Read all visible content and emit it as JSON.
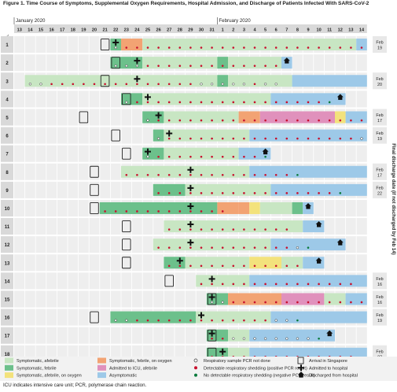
{
  "figure": {
    "title": "Figure 1. Time Course of Symptoms, Supplemental Oxygen Requirements, Hospital Admission, and Discharge of Patients Infected With SARS-CoV-2",
    "caption": "ICU indicates intensive care unit; PCR, polymerase chain reaction.",
    "right_axis_label": "Final discharge date (if not discharged by Feb 14)"
  },
  "chart_data": {
    "type": "table",
    "row_header": "Case no.",
    "months": [
      {
        "label": "January 2020",
        "start_index": 0
      },
      {
        "label": "February 2020",
        "start_index": 19
      }
    ],
    "days": [
      "13",
      "14",
      "15",
      "16",
      "17",
      "18",
      "19",
      "20",
      "21",
      "22",
      "23",
      "24",
      "25",
      "26",
      "27",
      "28",
      "29",
      "30",
      "31",
      "1",
      "2",
      "3",
      "4",
      "5",
      "6",
      "7",
      "8",
      "9",
      "10",
      "11",
      "12",
      "13",
      "14"
    ],
    "status_colors": {
      "asym": "#9dc9e8",
      "afeb": "#c8e6c3",
      "feb": "#6cc08b",
      "afeb_o2": "#f3e27c",
      "feb_o2": "#f2a373",
      "icu": "#e091bc"
    },
    "legend": [
      {
        "key": "afeb",
        "kind": "swatch",
        "label": "Symptomatic, afebrile"
      },
      {
        "key": "feb",
        "kind": "swatch",
        "label": "Symptomatic, febrile"
      },
      {
        "key": "afeb_o2",
        "kind": "swatch",
        "label": "Symptomatic, afebrile, on oxygen"
      },
      {
        "key": "feb_o2",
        "kind": "swatch",
        "label": "Symptomatic, febrile, on oxygen"
      },
      {
        "key": "icu",
        "kind": "swatch",
        "label": "Admitted to ICU, afebrile"
      },
      {
        "key": "asym",
        "kind": "swatch",
        "label": "Asymptomatic"
      },
      {
        "key": "nd",
        "kind": "open-dot",
        "label": "Respiratory sample PCR not done"
      },
      {
        "key": "pos",
        "kind": "red-dot",
        "label": "Detectable respiratory shedding (positive PCR result)"
      },
      {
        "key": "neg",
        "kind": "green-dot",
        "label": "No detectable respiratory shedding (negative PCR result)"
      },
      {
        "key": "arr",
        "kind": "box",
        "label": "Arrival in Singapore"
      },
      {
        "key": "adm",
        "kind": "cross",
        "label": "Admitted to hospital"
      },
      {
        "key": "dis",
        "kind": "house",
        "label": "Discharged from hospital"
      }
    ],
    "cases": [
      {
        "id": "1",
        "arrival": 8,
        "admit": 9,
        "discharge": null,
        "final": "Feb 19",
        "segments": [
          [
            "feb",
            9,
            10
          ],
          [
            "feb_o2",
            10,
            12
          ],
          [
            "afeb",
            12,
            32
          ],
          [
            "asym",
            32,
            33
          ]
        ],
        "tests": "nppppppppppppppppppppppp"
      },
      {
        "id": "2",
        "arrival": 9,
        "admit": 11,
        "discharge": 25,
        "final": "",
        "segments": [
          [
            "feb",
            9,
            12
          ],
          [
            "afeb",
            12,
            19
          ],
          [
            "feb",
            19,
            20
          ],
          [
            "afeb",
            20,
            25
          ],
          [
            "asym",
            25,
            26
          ]
        ],
        "tests": "nnnppppppppppppp"
      },
      {
        "id": "3",
        "arrival": 8,
        "admit": 11,
        "discharge": null,
        "final": "Feb 20",
        "segments": [
          [
            "afeb",
            1,
            19
          ],
          [
            "feb",
            19,
            20
          ],
          [
            "afeb",
            20,
            26
          ],
          [
            "asym",
            26,
            33
          ]
        ],
        "tests": "nnppppppppppppppnnnnnpnn"
      },
      {
        "id": "4",
        "arrival": 10,
        "admit": 12,
        "discharge": 30,
        "final": "",
        "segments": [
          [
            "feb",
            10,
            12
          ],
          [
            "afeb",
            12,
            24
          ],
          [
            "asym",
            24,
            31
          ]
        ],
        "tests": "nppppppppppppppppppg"
      },
      {
        "id": "5",
        "arrival": 6,
        "admit": 13,
        "discharge": null,
        "final": "Feb 17",
        "segments": [
          [
            "feb",
            12,
            14
          ],
          [
            "afeb",
            14,
            21
          ],
          [
            "feb_o2",
            21,
            23
          ],
          [
            "icu",
            23,
            30
          ],
          [
            "afeb_o2",
            30,
            31
          ],
          [
            "asym",
            31,
            33
          ]
        ],
        "tests": "npppppppppppppppppppp"
      },
      {
        "id": "6",
        "arrival": 9,
        "admit": 14,
        "discharge": null,
        "final": "Feb 19",
        "segments": [
          [
            "feb",
            13,
            14
          ],
          [
            "afeb",
            14,
            22
          ],
          [
            "asym",
            22,
            33
          ]
        ],
        "tests": "nppppppppppppppppppnn"
      },
      {
        "id": "7",
        "arrival": 10,
        "admit": 12,
        "discharge": 23,
        "final": "",
        "segments": [
          [
            "feb",
            12,
            14
          ],
          [
            "afeb",
            14,
            21
          ],
          [
            "asym",
            21,
            24
          ]
        ],
        "tests": "nppppppppppg"
      },
      {
        "id": "8",
        "arrival": 7,
        "admit": 16,
        "discharge": null,
        "final": "Feb 17",
        "segments": [
          [
            "afeb",
            10,
            16
          ],
          [
            "afeb",
            16,
            22
          ],
          [
            "asym",
            22,
            33
          ]
        ],
        "tests": "ppppppppppppppppg"
      },
      {
        "id": "9",
        "arrival": 7,
        "admit": 16,
        "discharge": null,
        "final": "Feb 22",
        "segments": [
          [
            "feb",
            13,
            16
          ],
          [
            "afeb",
            16,
            24
          ],
          [
            "asym",
            24,
            33
          ]
        ],
        "tests": "pppppppppppppppppg"
      },
      {
        "id": "10",
        "arrival": 7,
        "admit": 16,
        "discharge": 27,
        "final": "",
        "segments": [
          [
            "feb",
            8,
            19
          ],
          [
            "feb_o2",
            19,
            21
          ],
          [
            "feb_o2",
            21,
            22
          ],
          [
            "afeb_o2",
            22,
            23
          ],
          [
            "afeb",
            23,
            26
          ],
          [
            "feb",
            26,
            27
          ],
          [
            "asym",
            27,
            28
          ]
        ],
        "tests": "pppppppppppp"
      },
      {
        "id": "11",
        "arrival": 10,
        "admit": 16,
        "discharge": 28,
        "final": "",
        "segments": [
          [
            "afeb",
            14,
            16
          ],
          [
            "afeb",
            16,
            27
          ],
          [
            "asym",
            27,
            29
          ]
        ],
        "tests": "pppppppppppp"
      },
      {
        "id": "12",
        "arrival": 10,
        "admit": 16,
        "discharge": 30,
        "final": "",
        "segments": [
          [
            "afeb",
            13,
            16
          ],
          [
            "afeb",
            16,
            24
          ],
          [
            "asym",
            24,
            31
          ]
        ],
        "tests": "pppppppppppppng"
      },
      {
        "id": "13",
        "arrival": 10,
        "admit": 15,
        "discharge": 28,
        "final": "",
        "segments": [
          [
            "feb",
            14,
            16
          ],
          [
            "afeb",
            16,
            22
          ],
          [
            "afeb_o2",
            22,
            25
          ],
          [
            "afeb",
            25,
            27
          ],
          [
            "asym",
            27,
            29
          ]
        ],
        "tests": "ppppppppppppp"
      },
      {
        "id": "14",
        "arrival": 14,
        "admit": 18,
        "discharge": null,
        "final": "Feb 16",
        "segments": [
          [
            "afeb",
            17,
            20
          ],
          [
            "afeb",
            20,
            22
          ],
          [
            "asym",
            22,
            33
          ]
        ],
        "tests": "ppppppppppppppp"
      },
      {
        "id": "15",
        "arrival": 18,
        "admit": 18,
        "discharge": null,
        "final": "Feb 16",
        "segments": [
          [
            "feb",
            18,
            20
          ],
          [
            "feb_o2",
            20,
            25
          ],
          [
            "icu",
            25,
            29
          ],
          [
            "afeb",
            29,
            31
          ],
          [
            "asym",
            31,
            33
          ]
        ],
        "tests": "nnpppppppppppppp"
      },
      {
        "id": "16",
        "arrival": 7,
        "admit": 17,
        "discharge": null,
        "final": "Feb 19",
        "segments": [
          [
            "feb",
            9,
            17
          ],
          [
            "afeb",
            17,
            24
          ],
          [
            "asym",
            24,
            33
          ]
        ],
        "tests": "nnpppppppppppppnng"
      },
      {
        "id": "17",
        "arrival": 18,
        "admit": 18,
        "discharge": 29,
        "final": "",
        "segments": [
          [
            "feb",
            18,
            20
          ],
          [
            "afeb",
            20,
            22
          ],
          [
            "asym",
            22,
            30
          ]
        ],
        "tests": "ppnnnnnnnng"
      },
      {
        "id": "18",
        "arrival": 18,
        "admit": 19,
        "discharge": null,
        "final": "Feb 27",
        "segments": [
          [
            "feb",
            18,
            20
          ],
          [
            "afeb",
            20,
            22
          ],
          [
            "asym",
            22,
            33
          ]
        ],
        "tests": "pppppppppppppp"
      }
    ]
  }
}
